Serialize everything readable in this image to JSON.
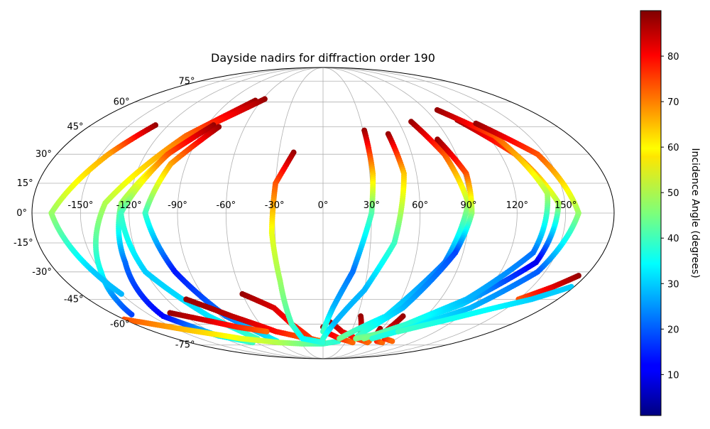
{
  "chart_data": {
    "type": "scatter",
    "projection": "mollweide",
    "title": "Dayside nadirs for diffraction order 190",
    "lon_ticks": [
      "-150°",
      "-120°",
      "-90°",
      "-60°",
      "-30°",
      "0°",
      "30°",
      "60°",
      "90°",
      "120°",
      "150°"
    ],
    "lat_ticks": [
      "-75°",
      "-60°",
      "-45°",
      "-30°",
      "-15°",
      "0°",
      "15°",
      "30°",
      "45°",
      "60°",
      "75°"
    ],
    "lon_range": [
      -180,
      180
    ],
    "lat_range": [
      -90,
      90
    ],
    "grid": true,
    "colorbar": {
      "label": "Incidence Angle (degrees)",
      "colormap": "jet",
      "range": [
        1,
        90
      ],
      "ticks": [
        "10",
        "20",
        "30",
        "40",
        "50",
        "60",
        "70",
        "80"
      ],
      "tick_values": [
        10,
        20,
        30,
        40,
        50,
        60,
        70,
        80
      ]
    },
    "tracks": [
      {
        "points": [
          [
            -66,
            61
          ],
          [
            -100,
            40
          ],
          [
            -135,
            5
          ],
          [
            -150,
            -30
          ],
          [
            -160,
            -47
          ],
          [
            -165,
            -54
          ]
        ],
        "incidence": [
          88,
          70,
          50,
          35,
          22,
          18
        ]
      },
      {
        "points": [
          [
            -130,
            46
          ],
          [
            -145,
            30
          ],
          [
            -168,
            0
          ],
          [
            -155,
            -30
          ],
          [
            -150,
            -42
          ]
        ],
        "incidence": [
          88,
          65,
          48,
          30,
          28
        ]
      },
      {
        "points": [
          [
            -58,
            62
          ],
          [
            -95,
            42
          ],
          [
            -125,
            5
          ],
          [
            -130,
            -25
          ],
          [
            -140,
            -55
          ],
          [
            -120,
            -68
          ],
          [
            -95,
            -73
          ]
        ],
        "incidence": [
          88,
          72,
          48,
          22,
          12,
          32,
          40
        ]
      },
      {
        "points": [
          [
            -85,
            46
          ],
          [
            -105,
            30
          ],
          [
            -125,
            0
          ],
          [
            -120,
            -30
          ],
          [
            -100,
            -55
          ],
          [
            -80,
            -70
          ]
        ],
        "incidence": [
          88,
          72,
          40,
          30,
          32,
          40
        ]
      },
      {
        "points": [
          [
            -80,
            45
          ],
          [
            -100,
            25
          ],
          [
            -110,
            0
          ],
          [
            -100,
            -30
          ],
          [
            -85,
            -55
          ],
          [
            -60,
            -72
          ]
        ],
        "incidence": [
          88,
          65,
          40,
          14,
          22,
          34
        ]
      },
      {
        "points": [
          [
            -105,
            -45
          ],
          [
            -80,
            -55
          ],
          [
            -50,
            -65
          ],
          [
            -20,
            -70
          ],
          [
            0,
            -72
          ]
        ],
        "incidence": [
          88,
          85,
          78,
          70,
          65
        ]
      },
      {
        "points": [
          [
            -130,
            -53
          ],
          [
            -105,
            -58
          ],
          [
            -85,
            -62
          ],
          [
            -60,
            -65
          ]
        ],
        "incidence": [
          88,
          82,
          76,
          70
        ]
      },
      {
        "points": [
          [
            -180,
            -57
          ],
          [
            -140,
            -64
          ],
          [
            -100,
            -70
          ],
          [
            -60,
            -73
          ],
          [
            -30,
            -74
          ],
          [
            0,
            -74
          ],
          [
            20,
            -72
          ]
        ],
        "incidence": [
          72,
          62,
          55,
          50,
          45,
          40,
          38
        ]
      },
      {
        "points": [
          [
            -60,
            -42
          ],
          [
            -40,
            -50
          ],
          [
            -30,
            -60
          ],
          [
            -15,
            -70
          ],
          [
            0,
            -73
          ]
        ],
        "incidence": [
          88,
          82,
          78,
          74,
          70
        ]
      },
      {
        "points": [
          [
            -20,
            31
          ],
          [
            -30,
            15
          ],
          [
            -32,
            -10
          ],
          [
            -30,
            -35
          ],
          [
            -30,
            -60
          ],
          [
            -25,
            -70
          ],
          [
            0,
            -73
          ]
        ],
        "incidence": [
          88,
          72,
          55,
          48,
          40,
          34,
          38
        ]
      },
      {
        "points": [
          [
            0,
            -62
          ],
          [
            5,
            -66
          ],
          [
            20,
            -70
          ],
          [
            40,
            -73
          ]
        ],
        "incidence": [
          88,
          82,
          76,
          70
        ]
      },
      {
        "points": [
          [
            5,
            -58
          ],
          [
            20,
            -65
          ],
          [
            40,
            -70
          ],
          [
            60,
            -73
          ]
        ],
        "incidence": [
          88,
          82,
          76,
          70
        ]
      },
      {
        "points": [
          [
            31,
            43
          ],
          [
            32,
            20
          ],
          [
            30,
            0
          ],
          [
            20,
            -30
          ],
          [
            8,
            -50
          ],
          [
            0,
            -65
          ]
        ],
        "incidence": [
          88,
          62,
          42,
          22,
          28,
          40
        ]
      },
      {
        "points": [
          [
            48,
            41
          ],
          [
            52,
            20
          ],
          [
            45,
            -15
          ],
          [
            30,
            -40
          ],
          [
            10,
            -60
          ],
          [
            0,
            -70
          ]
        ],
        "incidence": [
          88,
          62,
          40,
          28,
          28,
          38
        ]
      },
      {
        "points": [
          [
            33,
            -55
          ],
          [
            40,
            -65
          ],
          [
            50,
            -70
          ],
          [
            60,
            -72
          ]
        ],
        "incidence": [
          88,
          82,
          76,
          70
        ]
      },
      {
        "points": [
          [
            58,
            -63
          ],
          [
            60,
            -68
          ],
          [
            70,
            -72
          ],
          [
            80,
            -73
          ]
        ],
        "incidence": [
          88,
          82,
          76,
          70
        ]
      },
      {
        "points": [
          [
            70,
            -55
          ],
          [
            66,
            -65
          ],
          [
            75,
            -70
          ],
          [
            90,
            -72
          ]
        ],
        "incidence": [
          88,
          82,
          76,
          70
        ]
      },
      {
        "points": [
          [
            70,
            48
          ],
          [
            82,
            30
          ],
          [
            90,
            5
          ],
          [
            80,
            -25
          ],
          [
            55,
            -55
          ],
          [
            20,
            -70
          ]
        ],
        "incidence": [
          88,
          72,
          50,
          22,
          32,
          44
        ]
      },
      {
        "points": [
          [
            82,
            38
          ],
          [
            92,
            20
          ],
          [
            92,
            0
          ],
          [
            85,
            -20
          ],
          [
            65,
            -50
          ],
          [
            40,
            -68
          ]
        ],
        "incidence": [
          88,
          72,
          48,
          18,
          28,
          40
        ]
      },
      {
        "points": [
          [
            108,
            49
          ],
          [
            130,
            30
          ],
          [
            146,
            5
          ],
          [
            140,
            -25
          ],
          [
            110,
            -48
          ],
          [
            70,
            -65
          ],
          [
            40,
            -70
          ]
        ],
        "incidence": [
          88,
          72,
          50,
          10,
          30,
          38,
          45
        ]
      },
      {
        "points": [
          [
            100,
            55
          ],
          [
            125,
            40
          ],
          [
            140,
            10
          ],
          [
            135,
            -20
          ],
          [
            110,
            -45
          ],
          [
            80,
            -60
          ],
          [
            50,
            -70
          ]
        ],
        "incidence": [
          88,
          72,
          50,
          22,
          28,
          38,
          45
        ]
      },
      {
        "points": [
          [
            120,
            47
          ],
          [
            145,
            30
          ],
          [
            158,
            0
          ],
          [
            145,
            -30
          ],
          [
            120,
            -50
          ],
          [
            90,
            -62
          ],
          [
            60,
            -70
          ]
        ],
        "incidence": [
          88,
          72,
          48,
          20,
          28,
          34,
          38
        ]
      },
      {
        "points": [
          [
            175,
            -32
          ],
          [
            165,
            -38
          ],
          [
            150,
            -45
          ]
        ],
        "incidence": [
          88,
          82,
          72
        ]
      },
      {
        "points": [
          [
            178,
            -38
          ],
          [
            160,
            -45
          ],
          [
            140,
            -50
          ],
          [
            110,
            -58
          ],
          [
            80,
            -65
          ]
        ],
        "incidence": [
          30,
          30,
          34,
          36,
          40
        ]
      }
    ]
  }
}
